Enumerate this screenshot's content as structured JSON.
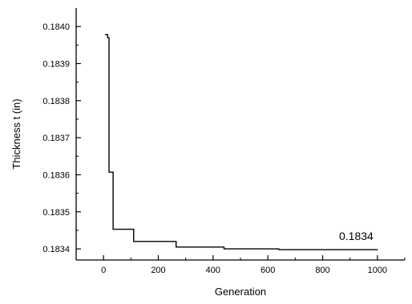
{
  "chart_data": {
    "type": "line",
    "title": "",
    "xlabel": "Generation",
    "ylabel": "Thickness t (in)",
    "xlim": [
      -100,
      1100
    ],
    "ylim": [
      0.18337,
      0.18405
    ],
    "xticks": [
      0,
      200,
      400,
      600,
      800,
      1000
    ],
    "yticks": [
      0.1834,
      0.1835,
      0.1836,
      0.1837,
      0.1838,
      0.1839,
      0.184
    ],
    "xtick_labels": [
      "0",
      "200",
      "400",
      "600",
      "800",
      "1000"
    ],
    "ytick_labels": [
      "0.1834",
      "0.1835",
      "0.1836",
      "0.1837",
      "0.1838",
      "0.1839",
      "0.1840"
    ],
    "grid": false,
    "step": true,
    "series": [
      {
        "x": [
          5,
          15,
          20,
          35,
          110,
          265,
          440,
          640,
          1000
        ],
        "y": [
          0.183978,
          0.18397,
          0.183607,
          0.183453,
          0.18342,
          0.183405,
          0.1834,
          0.183398,
          0.183397
        ]
      }
    ],
    "annotations": [
      {
        "text": "0.1834",
        "x": 860,
        "y": 0.183415
      }
    ]
  }
}
